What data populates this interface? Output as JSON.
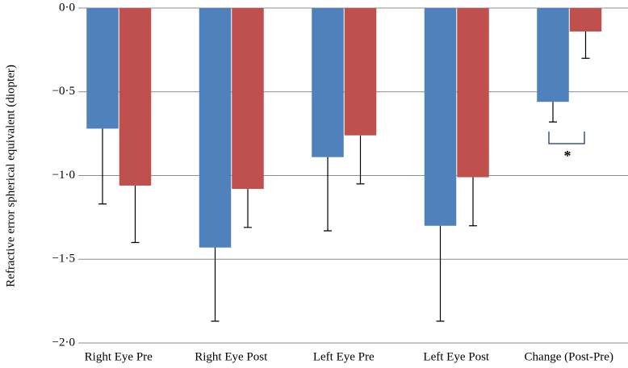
{
  "chart_data": {
    "type": "bar",
    "y_label": "Refractive  error spherical equivalent (diopter)",
    "categories": [
      "Right Eye Pre",
      "Right Eye Post",
      "Left Eye Pre",
      "Left Eye Post",
      "Change (Post-Pre)"
    ],
    "series": [
      {
        "color": "#4f81bd",
        "values": [
          -0.72,
          -1.43,
          -0.89,
          -1.3,
          -0.56
        ],
        "errors": [
          0.45,
          0.44,
          0.44,
          0.57,
          0.12
        ]
      },
      {
        "color": "#c0504d",
        "values": [
          -1.06,
          -1.08,
          -0.76,
          -1.01,
          -0.14
        ],
        "errors": [
          0.34,
          0.23,
          0.29,
          0.29,
          0.16
        ]
      }
    ],
    "ylim": [
      -2.0,
      0.0
    ],
    "yticks": [
      {
        "value": 0.0,
        "label": "0·0"
      },
      {
        "value": -0.5,
        "label": "−0·5"
      },
      {
        "value": -1.0,
        "label": "−1·0"
      },
      {
        "value": -1.5,
        "label": "−1·5"
      },
      {
        "value": -2.0,
        "label": "−2·0"
      }
    ],
    "grid": true,
    "annotation": "*"
  }
}
